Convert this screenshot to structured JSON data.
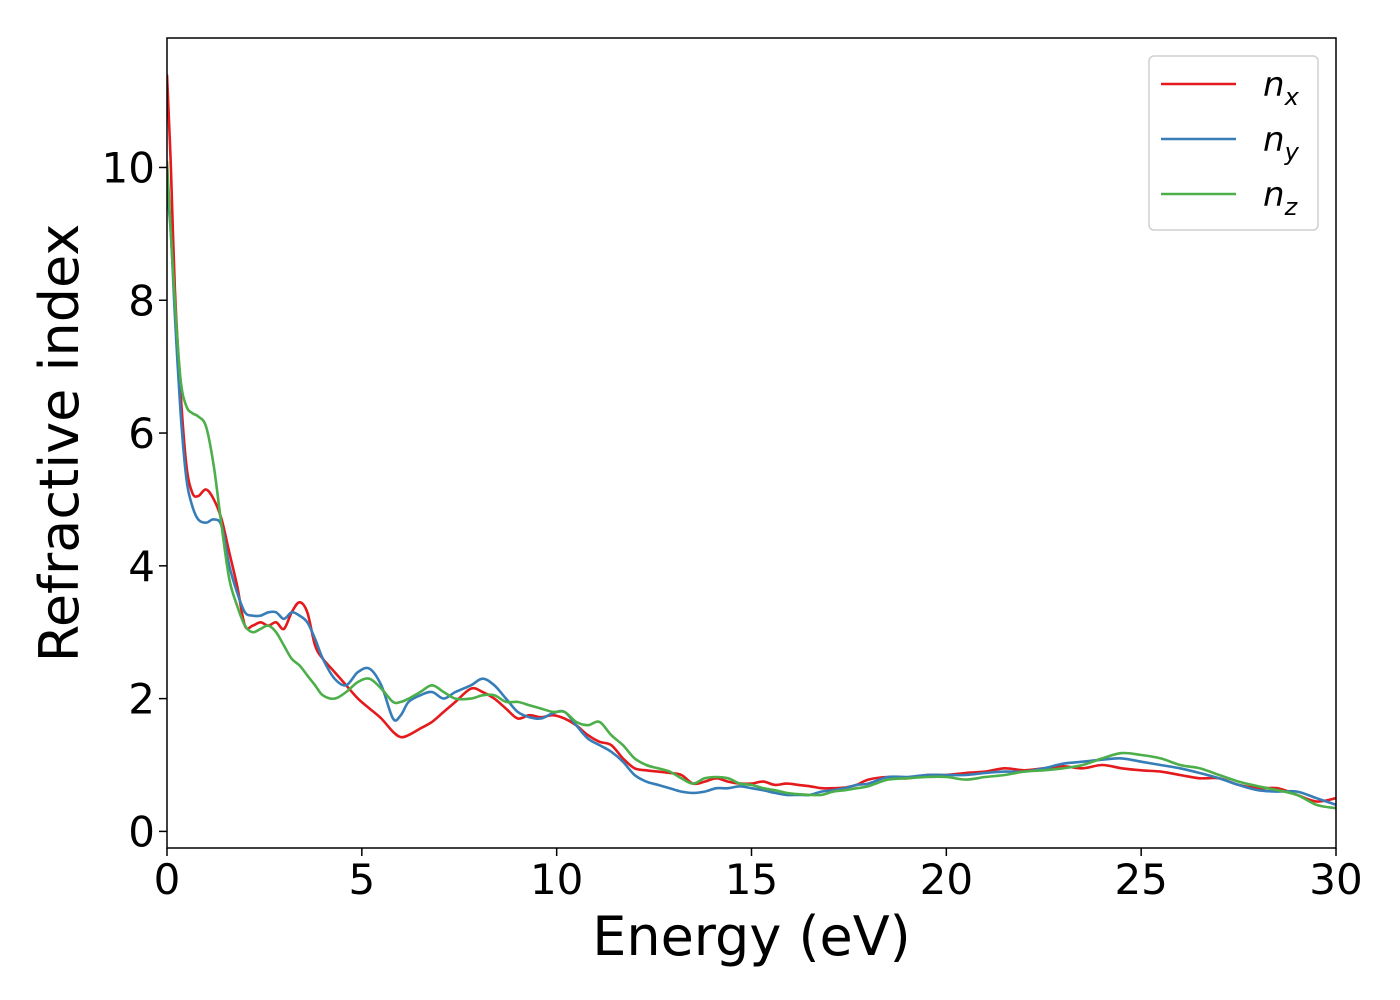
{
  "chart_data": {
    "type": "line",
    "xlabel": "Energy (eV)",
    "ylabel": "Refractive index",
    "xlim": [
      0,
      30
    ],
    "ylim": [
      -0.25,
      11.95
    ],
    "xticks": [
      0,
      5,
      10,
      15,
      20,
      25,
      30
    ],
    "yticks": [
      0,
      2,
      4,
      6,
      8,
      10
    ],
    "grid": false,
    "legend_position": "top-right",
    "series": [
      {
        "name": "n",
        "subscript": "x",
        "color": "#e41a1c",
        "x": [
          0,
          0.1,
          0.2,
          0.35,
          0.5,
          0.65,
          0.8,
          1.0,
          1.2,
          1.4,
          1.6,
          1.8,
          2.0,
          2.2,
          2.4,
          2.6,
          2.8,
          3.0,
          3.2,
          3.4,
          3.6,
          3.8,
          4.0,
          4.3,
          4.6,
          4.9,
          5.2,
          5.5,
          5.8,
          6.0,
          6.2,
          6.5,
          6.8,
          7.1,
          7.4,
          7.8,
          8.1,
          8.4,
          8.7,
          9.0,
          9.3,
          9.6,
          9.9,
          10.2,
          10.5,
          10.8,
          11.1,
          11.4,
          11.7,
          12.0,
          12.3,
          12.6,
          12.9,
          13.2,
          13.5,
          13.8,
          14.1,
          14.4,
          14.7,
          15.0,
          15.3,
          15.6,
          15.9,
          16.2,
          16.5,
          16.8,
          17.1,
          17.4,
          17.7,
          18.0,
          18.5,
          19.0,
          19.5,
          20.0,
          20.5,
          21.0,
          21.5,
          22.0,
          22.5,
          23.0,
          23.5,
          24.0,
          24.5,
          25.0,
          25.5,
          26.0,
          26.5,
          27.0,
          27.5,
          28.0,
          28.5,
          29.0,
          29.5,
          30.0
        ],
        "y": [
          11.4,
          10.0,
          8.2,
          6.6,
          5.5,
          5.1,
          5.05,
          5.15,
          5.0,
          4.7,
          4.2,
          3.7,
          3.1,
          3.1,
          3.15,
          3.1,
          3.15,
          3.05,
          3.3,
          3.45,
          3.3,
          2.8,
          2.6,
          2.4,
          2.2,
          2.0,
          1.85,
          1.7,
          1.5,
          1.42,
          1.45,
          1.55,
          1.65,
          1.8,
          1.95,
          2.15,
          2.1,
          2.0,
          1.85,
          1.7,
          1.75,
          1.72,
          1.75,
          1.7,
          1.6,
          1.45,
          1.35,
          1.3,
          1.1,
          0.95,
          0.92,
          0.9,
          0.88,
          0.85,
          0.72,
          0.75,
          0.8,
          0.75,
          0.72,
          0.72,
          0.75,
          0.7,
          0.72,
          0.7,
          0.68,
          0.65,
          0.65,
          0.66,
          0.7,
          0.78,
          0.82,
          0.8,
          0.85,
          0.85,
          0.88,
          0.9,
          0.95,
          0.92,
          0.95,
          0.98,
          0.95,
          1.0,
          0.95,
          0.92,
          0.9,
          0.85,
          0.8,
          0.8,
          0.7,
          0.65,
          0.65,
          0.55,
          0.45,
          0.5
        ]
      },
      {
        "name": "n",
        "subscript": "y",
        "color": "#377eb8",
        "x": [
          0,
          0.1,
          0.2,
          0.35,
          0.5,
          0.65,
          0.8,
          1.0,
          1.2,
          1.4,
          1.6,
          1.8,
          2.0,
          2.2,
          2.4,
          2.6,
          2.8,
          3.0,
          3.2,
          3.4,
          3.6,
          3.8,
          4.0,
          4.3,
          4.6,
          4.9,
          5.2,
          5.5,
          5.8,
          6.0,
          6.2,
          6.5,
          6.8,
          7.1,
          7.4,
          7.8,
          8.1,
          8.4,
          8.7,
          9.0,
          9.3,
          9.6,
          9.9,
          10.2,
          10.5,
          10.8,
          11.1,
          11.4,
          11.7,
          12.0,
          12.3,
          12.6,
          12.9,
          13.2,
          13.5,
          13.8,
          14.1,
          14.4,
          14.7,
          15.0,
          15.3,
          15.6,
          15.9,
          16.2,
          16.5,
          16.8,
          17.1,
          17.4,
          17.7,
          18.0,
          18.5,
          19.0,
          19.5,
          20.0,
          20.5,
          21.0,
          21.5,
          22.0,
          22.5,
          23.0,
          23.5,
          24.0,
          24.5,
          25.0,
          25.5,
          26.0,
          26.5,
          27.0,
          27.5,
          28.0,
          28.5,
          29.0,
          29.5,
          30.0
        ],
        "y": [
          9.7,
          9.0,
          7.8,
          6.3,
          5.3,
          4.9,
          4.7,
          4.65,
          4.7,
          4.6,
          4.0,
          3.6,
          3.3,
          3.25,
          3.25,
          3.3,
          3.3,
          3.2,
          3.3,
          3.25,
          3.15,
          2.9,
          2.6,
          2.3,
          2.2,
          2.4,
          2.45,
          2.2,
          1.7,
          1.75,
          1.95,
          2.05,
          2.1,
          2.0,
          2.1,
          2.2,
          2.3,
          2.2,
          2.0,
          1.8,
          1.72,
          1.7,
          1.78,
          1.8,
          1.6,
          1.4,
          1.3,
          1.2,
          1.05,
          0.85,
          0.75,
          0.7,
          0.65,
          0.6,
          0.58,
          0.6,
          0.65,
          0.65,
          0.68,
          0.65,
          0.62,
          0.58,
          0.55,
          0.55,
          0.55,
          0.6,
          0.62,
          0.65,
          0.7,
          0.72,
          0.82,
          0.82,
          0.85,
          0.85,
          0.85,
          0.88,
          0.9,
          0.9,
          0.95,
          1.02,
          1.05,
          1.08,
          1.1,
          1.05,
          1.0,
          0.95,
          0.88,
          0.8,
          0.7,
          0.62,
          0.6,
          0.6,
          0.5,
          0.4
        ]
      },
      {
        "name": "n",
        "subscript": "z",
        "color": "#4daf4a",
        "x": [
          0,
          0.1,
          0.2,
          0.35,
          0.5,
          0.65,
          0.8,
          1.0,
          1.2,
          1.4,
          1.6,
          1.8,
          2.0,
          2.2,
          2.4,
          2.6,
          2.8,
          3.0,
          3.2,
          3.4,
          3.6,
          3.8,
          4.0,
          4.3,
          4.6,
          4.9,
          5.2,
          5.5,
          5.8,
          6.0,
          6.2,
          6.5,
          6.8,
          7.1,
          7.4,
          7.8,
          8.1,
          8.4,
          8.7,
          9.0,
          9.3,
          9.6,
          9.9,
          10.2,
          10.5,
          10.8,
          11.1,
          11.4,
          11.7,
          12.0,
          12.3,
          12.6,
          12.9,
          13.2,
          13.5,
          13.8,
          14.1,
          14.4,
          14.7,
          15.0,
          15.3,
          15.6,
          15.9,
          16.2,
          16.5,
          16.8,
          17.1,
          17.4,
          17.7,
          18.0,
          18.5,
          19.0,
          19.5,
          20.0,
          20.5,
          21.0,
          21.5,
          22.0,
          22.5,
          23.0,
          23.5,
          24.0,
          24.5,
          25.0,
          25.5,
          26.0,
          26.5,
          27.0,
          27.5,
          28.0,
          28.5,
          29.0,
          29.5,
          30.0
        ],
        "y": [
          10.1,
          9.0,
          8.0,
          6.8,
          6.4,
          6.3,
          6.25,
          6.1,
          5.5,
          4.6,
          3.8,
          3.4,
          3.1,
          3.0,
          3.05,
          3.1,
          3.0,
          2.8,
          2.6,
          2.5,
          2.35,
          2.2,
          2.05,
          2.0,
          2.1,
          2.25,
          2.3,
          2.15,
          1.95,
          1.95,
          2.0,
          2.1,
          2.2,
          2.1,
          2.0,
          2.0,
          2.05,
          2.05,
          1.95,
          1.95,
          1.9,
          1.85,
          1.8,
          1.8,
          1.65,
          1.6,
          1.65,
          1.45,
          1.3,
          1.1,
          1.0,
          0.95,
          0.9,
          0.8,
          0.72,
          0.8,
          0.82,
          0.8,
          0.72,
          0.7,
          0.65,
          0.62,
          0.58,
          0.56,
          0.55,
          0.55,
          0.6,
          0.62,
          0.65,
          0.68,
          0.78,
          0.8,
          0.82,
          0.82,
          0.78,
          0.82,
          0.85,
          0.9,
          0.92,
          0.95,
          1.0,
          1.1,
          1.18,
          1.15,
          1.1,
          1.0,
          0.95,
          0.85,
          0.75,
          0.68,
          0.62,
          0.55,
          0.4,
          0.35
        ]
      }
    ]
  }
}
